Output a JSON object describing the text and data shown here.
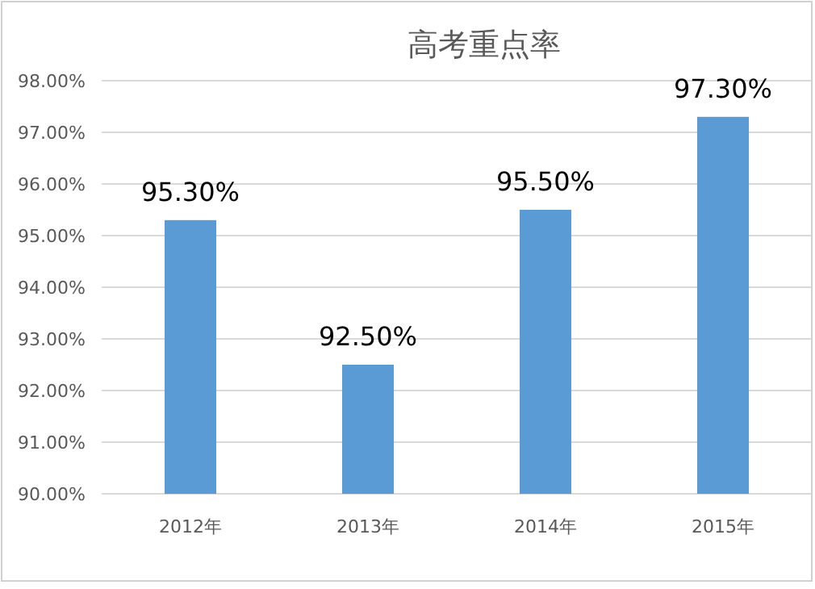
{
  "chart_data": {
    "type": "bar",
    "title": "高考重点率",
    "categories": [
      "2012年",
      "2013年",
      "2014年",
      "2015年"
    ],
    "values": [
      95.3,
      92.5,
      95.5,
      97.3
    ],
    "value_labels": [
      "95.30%",
      "92.50%",
      "95.50%",
      "97.30%"
    ],
    "color": "#5b9bd5",
    "ylim": [
      90,
      98
    ],
    "yticks": [
      {
        "value": 90,
        "label": "90.00%"
      },
      {
        "value": 91,
        "label": "91.00%"
      },
      {
        "value": 92,
        "label": "92.00%"
      },
      {
        "value": 93,
        "label": "93.00%"
      },
      {
        "value": 94,
        "label": "94.00%"
      },
      {
        "value": 95,
        "label": "95.00%"
      },
      {
        "value": 96,
        "label": "96.00%"
      },
      {
        "value": 97,
        "label": "97.00%"
      },
      {
        "value": 98,
        "label": "98.00%"
      }
    ],
    "grid": "y"
  }
}
